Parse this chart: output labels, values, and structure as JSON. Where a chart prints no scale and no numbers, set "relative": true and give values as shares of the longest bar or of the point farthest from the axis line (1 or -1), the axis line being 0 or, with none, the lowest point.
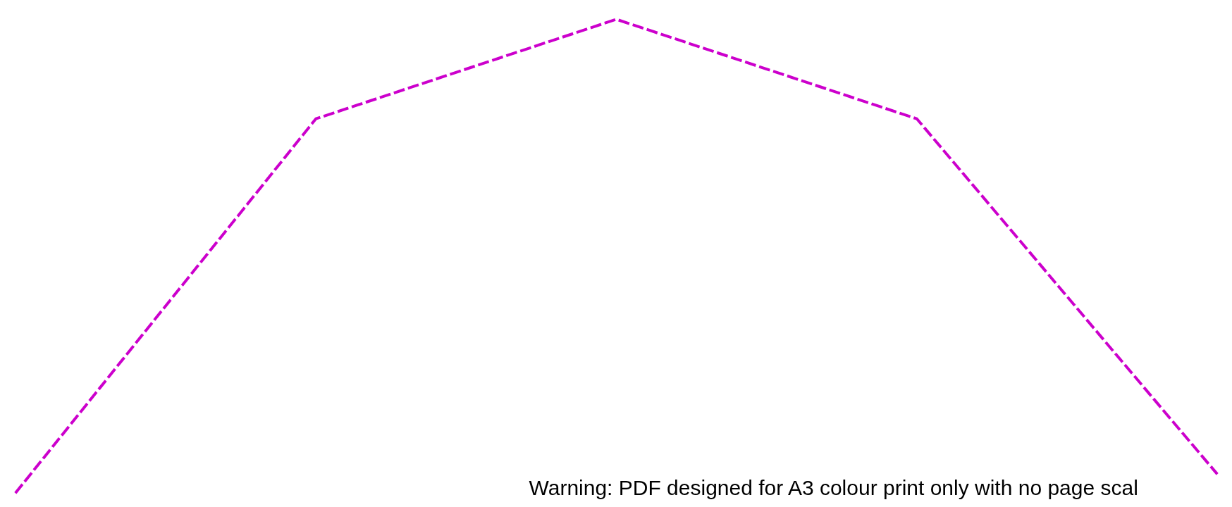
{
  "chart_data": {
    "type": "line",
    "relative": true,
    "categories": [
      null,
      null,
      null,
      null,
      null
    ],
    "series": [
      {
        "color": "#cc00cc",
        "values": [
          0,
          0.79,
          1,
          0.79,
          0.04
        ]
      }
    ],
    "line_style": "dashed",
    "marker": "none",
    "annotations": [
      "Warning: PDF designed for A3 colour print only with no page scal"
    ]
  }
}
